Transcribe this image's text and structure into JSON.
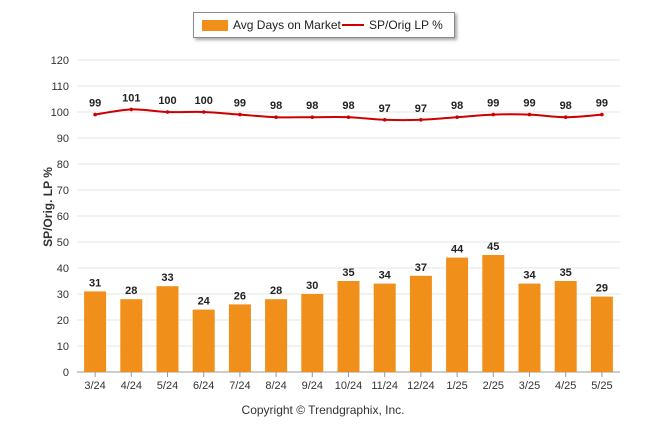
{
  "chart_data": {
    "type": "bar",
    "categories": [
      "3/24",
      "4/24",
      "5/24",
      "6/24",
      "7/24",
      "8/24",
      "9/24",
      "10/24",
      "11/24",
      "12/24",
      "1/25",
      "2/25",
      "3/25",
      "4/25",
      "5/25"
    ],
    "series": [
      {
        "name": "Avg Days on Market",
        "type": "bar",
        "color": "#f0901a",
        "values": [
          31,
          28,
          33,
          24,
          26,
          28,
          30,
          35,
          34,
          37,
          44,
          45,
          34,
          35,
          29
        ]
      },
      {
        "name": "SP/Orig LP %",
        "type": "line",
        "color": "#cc0000",
        "values": [
          99,
          101,
          100,
          100,
          99,
          98,
          98,
          98,
          97,
          97,
          98,
          99,
          99,
          98,
          99
        ]
      }
    ],
    "ylabel": "SP/Orig. LP %",
    "ylim": [
      0,
      120
    ],
    "yticks": [
      0,
      10,
      20,
      30,
      40,
      50,
      60,
      70,
      80,
      90,
      100,
      110,
      120
    ],
    "grid": true,
    "legend_position": "top-center",
    "data_labels": true
  },
  "legend": {
    "bar_label": "Avg Days on Market",
    "line_label": "SP/Orig LP %"
  },
  "footer": {
    "copyright": "Copyright © Trendgraphix, Inc."
  }
}
